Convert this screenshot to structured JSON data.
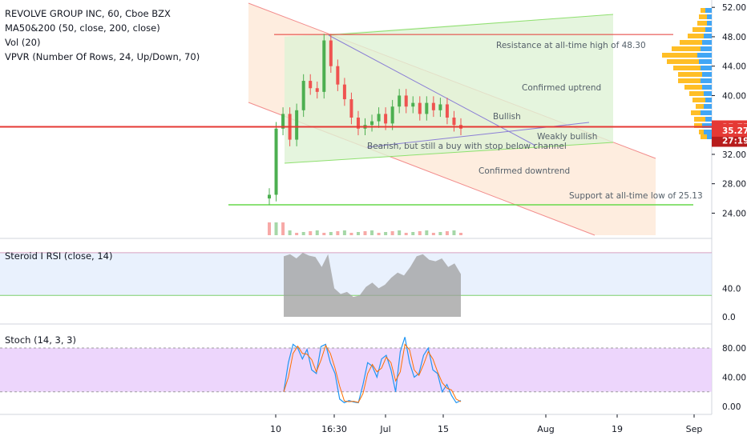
{
  "header": {
    "symbol_line": "REVOLVE GROUP INC, 60, Cboe BZX",
    "indicators": [
      "MA50&200 (50, close, 200, close)",
      "Vol (20)",
      "VPVR (Number Of Rows, 24, Up/Down, 70)"
    ]
  },
  "colors": {
    "up": "#4caf50",
    "down": "#ef5350",
    "resistance": "#e53935",
    "support": "#66d94a",
    "ma_line": "#8b7fd6",
    "current_price": "#e53935",
    "rsi_band": "#dbe8fb",
    "stoch_band": "#e8ccfb",
    "vpvr_up": "#2196f3",
    "vpvr_down": "#ffb300"
  },
  "chart_data": [
    {
      "type": "candlestick",
      "title": "REVOLVE GROUP INC, 60, Cboe BZX",
      "ylim": [
        21,
        53
      ],
      "y_ticks": [
        24.0,
        28.0,
        32.0,
        36.0,
        40.0,
        44.0,
        48.0,
        52.0
      ],
      "x_ticks": [
        "10",
        "16:30",
        "Jul",
        "15",
        "Aug",
        "19",
        "Sep"
      ],
      "price_series": [
        {
          "t": "10",
          "v": 26.5
        },
        {
          "t": "10",
          "v": 35.5
        },
        {
          "t": "10",
          "v": 37.5
        },
        {
          "t": "10",
          "v": 34.0
        },
        {
          "t": "11",
          "v": 38.0
        },
        {
          "t": "12",
          "v": 42.0
        },
        {
          "t": "13",
          "v": 41.0
        },
        {
          "t": "14",
          "v": 40.5
        },
        {
          "t": "16:30",
          "v": 47.5
        },
        {
          "t": "16:30",
          "v": 44.0
        },
        {
          "t": "16:30",
          "v": 41.5
        },
        {
          "t": "24",
          "v": 39.5
        },
        {
          "t": "25",
          "v": 37.0
        },
        {
          "t": "26",
          "v": 35.5
        },
        {
          "t": "27",
          "v": 36.0
        },
        {
          "t": "28",
          "v": 36.5
        },
        {
          "t": "Jul",
          "v": 37.5
        },
        {
          "t": "Jul",
          "v": 36.2
        },
        {
          "t": "3",
          "v": 38.5
        },
        {
          "t": "5",
          "v": 40.0
        },
        {
          "t": "8",
          "v": 38.5
        },
        {
          "t": "9",
          "v": 39.0
        },
        {
          "t": "10",
          "v": 37.5
        },
        {
          "t": "11",
          "v": 39.0
        },
        {
          "t": "12",
          "v": 38.0
        },
        {
          "t": "15",
          "v": 38.8
        },
        {
          "t": "16",
          "v": 37.0
        },
        {
          "t": "17",
          "v": 36.0
        },
        {
          "t": "18",
          "v": 35.5
        }
      ],
      "current_price": 35.75,
      "countdown": "27:19",
      "price_label_2": 35.27,
      "resistance": {
        "value": 48.3,
        "label": "Resistance at all-time high of 48.30"
      },
      "support": {
        "value": 25.13,
        "label": "Support at all-time low of 25.13"
      },
      "annotations": [
        "Confirmed uptrend",
        "Bullish",
        "Weakly bullish",
        "Bearish, but still a buy with stop below channel",
        "Confirmed downtrend"
      ]
    },
    {
      "type": "area",
      "title": "Steroid I RSI (close, 14)",
      "ylim": [
        0,
        100
      ],
      "y_ticks": [
        0.0,
        40.0
      ],
      "levels": [
        30,
        70
      ]
    },
    {
      "type": "line",
      "title": "Stoch (14, 3, 3)",
      "ylim": [
        -5,
        100
      ],
      "y_ticks": [
        0.0,
        40.0,
        80.0
      ],
      "levels": [
        20,
        80
      ],
      "series": [
        {
          "values": [
            20,
            60,
            85,
            80,
            65,
            78,
            50,
            45,
            82,
            85,
            60,
            45,
            10,
            5,
            8,
            6,
            5,
            30,
            60,
            55,
            40,
            65,
            70,
            50,
            20,
            75,
            95,
            60,
            40,
            45,
            70,
            80,
            50,
            45,
            20,
            30,
            15,
            5,
            8
          ]
        }
      ]
    }
  ]
}
